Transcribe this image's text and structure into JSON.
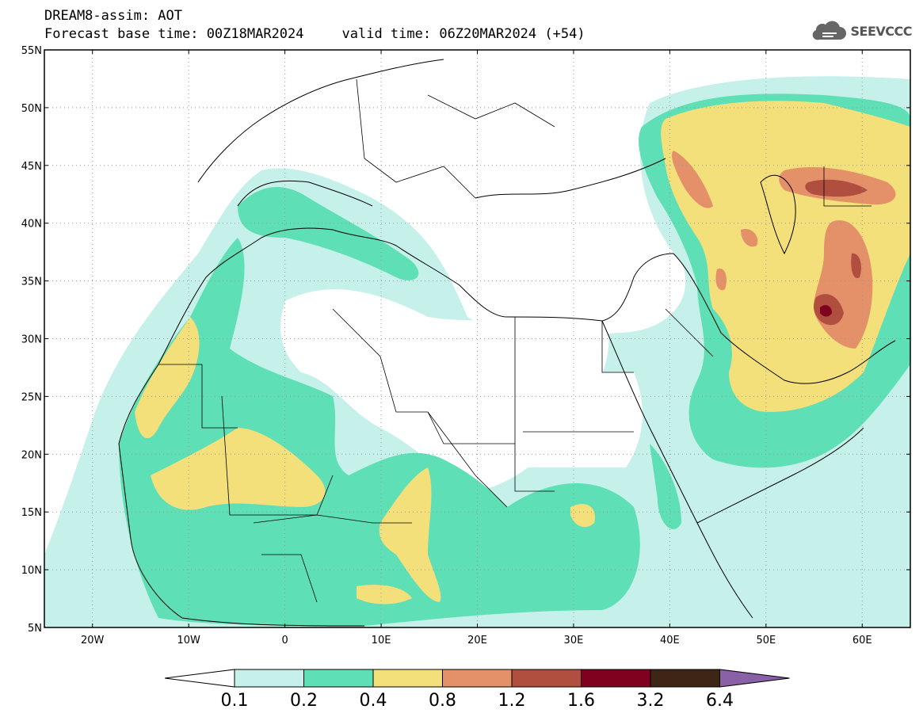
{
  "header": {
    "title": "DREAM8-assim: AOT",
    "base_time": "Forecast base time: 00Z18MAR2024",
    "valid_time": "valid time: 06Z20MAR2024 (+54)"
  },
  "logo": {
    "text": "SEEVCCC",
    "icon": "cloud-icon"
  },
  "map": {
    "lon_range": [
      -25,
      65
    ],
    "lat_range": [
      5,
      55
    ],
    "lat_ticks": [
      {
        "value": 55,
        "label": "55N"
      },
      {
        "value": 50,
        "label": "50N"
      },
      {
        "value": 45,
        "label": "45N"
      },
      {
        "value": 40,
        "label": "40N"
      },
      {
        "value": 35,
        "label": "35N"
      },
      {
        "value": 30,
        "label": "30N"
      },
      {
        "value": 25,
        "label": "25N"
      },
      {
        "value": 20,
        "label": "20N"
      },
      {
        "value": 15,
        "label": "15N"
      },
      {
        "value": 10,
        "label": "10N"
      },
      {
        "value": 5,
        "label": "5N"
      }
    ],
    "lon_ticks": [
      {
        "value": -20,
        "label": "20W"
      },
      {
        "value": -10,
        "label": "10W"
      },
      {
        "value": 0,
        "label": "0"
      },
      {
        "value": 10,
        "label": "10E"
      },
      {
        "value": 20,
        "label": "20E"
      },
      {
        "value": 30,
        "label": "30E"
      },
      {
        "value": 40,
        "label": "40E"
      },
      {
        "value": 50,
        "label": "50E"
      },
      {
        "value": 60,
        "label": "60E"
      }
    ],
    "grid": true
  },
  "colorbar": {
    "bins": [
      {
        "color": "#c6f1ea"
      },
      {
        "color": "#5fdfb5"
      },
      {
        "color": "#f3e07a"
      },
      {
        "color": "#e4916a"
      },
      {
        "color": "#b04f40"
      },
      {
        "color": "#800020"
      },
      {
        "color": "#3e2515"
      }
    ],
    "under_color": "#ffffff",
    "over_color": "#8a60a6",
    "labels": [
      "0.1",
      "0.2",
      "0.4",
      "0.8",
      "1.2",
      "1.6",
      "3.2",
      "6.4"
    ]
  }
}
